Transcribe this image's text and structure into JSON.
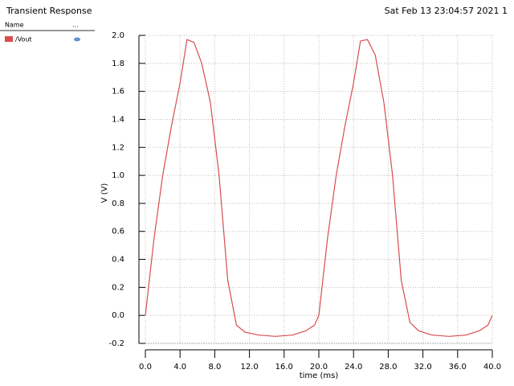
{
  "header": {
    "title": "Transient Response",
    "timestamp": "Sat Feb 13 23:04:57 2021  1"
  },
  "legend_panel": {
    "name_header": "Name",
    "more_header": "..."
  },
  "chart_data": {
    "type": "line",
    "x_label": "time (ms)",
    "y_label": "V (V)",
    "x": [
      0,
      1,
      2,
      3,
      4,
      4.8,
      5.6,
      6.5,
      7.5,
      8.5,
      9.5,
      10.5,
      11.5,
      13,
      15,
      17,
      18.5,
      19.5,
      20,
      21,
      22,
      23,
      24,
      24.8,
      25.6,
      26.5,
      27.5,
      28.5,
      29.5,
      30.5,
      31.5,
      33,
      35,
      37,
      38.5,
      39.5,
      40
    ],
    "series": [
      {
        "name": "/Vout",
        "color": "#d94c4c",
        "values": [
          0,
          0.55,
          1.0,
          1.35,
          1.66,
          1.97,
          1.95,
          1.8,
          1.52,
          1.0,
          0.25,
          -0.07,
          -0.12,
          -0.14,
          -0.15,
          -0.14,
          -0.11,
          -0.07,
          0.0,
          0.55,
          1.0,
          1.35,
          1.66,
          1.96,
          1.97,
          1.86,
          1.52,
          1.0,
          0.25,
          -0.05,
          -0.11,
          -0.14,
          -0.15,
          -0.14,
          -0.11,
          -0.07,
          0.0
        ]
      }
    ],
    "xlim": [
      0,
      40
    ],
    "ylim": [
      -0.2,
      2.0
    ],
    "xticks": [
      {
        "value": 0,
        "label": "0.0"
      },
      {
        "value": 4,
        "label": "4.0"
      },
      {
        "value": 8,
        "label": "8.0"
      },
      {
        "value": 12,
        "label": "12.0"
      },
      {
        "value": 16,
        "label": "16.0"
      },
      {
        "value": 20,
        "label": "20.0"
      },
      {
        "value": 24,
        "label": "24.0"
      },
      {
        "value": 28,
        "label": "28.0"
      },
      {
        "value": 32,
        "label": "32.0"
      },
      {
        "value": 36,
        "label": "36.0"
      },
      {
        "value": 40,
        "label": "40.0"
      }
    ],
    "yticks": [
      {
        "value": -0.2,
        "label": "-0.2"
      },
      {
        "value": 0,
        "label": "0.0"
      },
      {
        "value": 0.2,
        "label": "0.2"
      },
      {
        "value": 0.4,
        "label": "0.4"
      },
      {
        "value": 0.6,
        "label": "0.6"
      },
      {
        "value": 0.8,
        "label": "0.8"
      },
      {
        "value": 1.0,
        "label": "1.0"
      },
      {
        "value": 1.2,
        "label": "1.2"
      },
      {
        "value": 1.4,
        "label": "1.4"
      },
      {
        "value": 1.6,
        "label": "1.6"
      },
      {
        "value": 1.8,
        "label": "1.8"
      },
      {
        "value": 2.0,
        "label": "2.0"
      }
    ],
    "grid": true
  }
}
